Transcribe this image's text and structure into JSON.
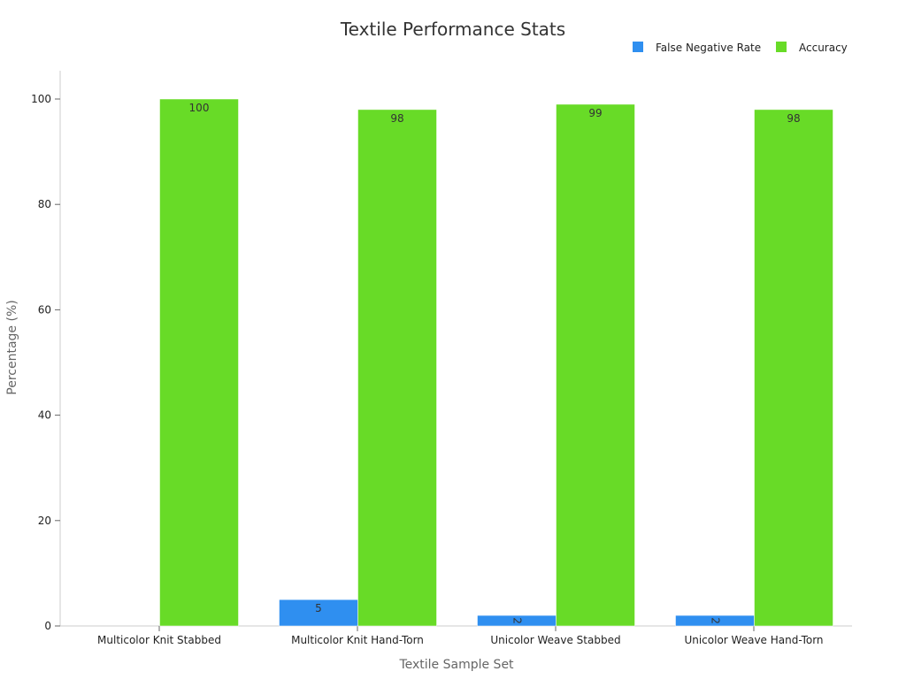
{
  "chart_data": {
    "type": "bar",
    "title": "Textile Performance Stats",
    "xlabel": "Textile Sample Set",
    "ylabel": "Percentage (%)",
    "categories": [
      "Multicolor Knit Stabbed",
      "Multicolor Knit Hand-Torn",
      "Unicolor Weave Stabbed",
      "Unicolor Weave Hand-Torn"
    ],
    "series": [
      {
        "name": "False Negative Rate",
        "color": "#2f8ff0",
        "values": [
          0,
          5,
          2,
          2
        ]
      },
      {
        "name": "Accuracy",
        "color": "#68db27",
        "values": [
          100,
          98,
          99,
          98
        ]
      }
    ],
    "ylim": [
      0,
      100
    ],
    "yticks": [
      0,
      20,
      40,
      60,
      80,
      100
    ],
    "legend_position": "top-right",
    "grid": false
  }
}
